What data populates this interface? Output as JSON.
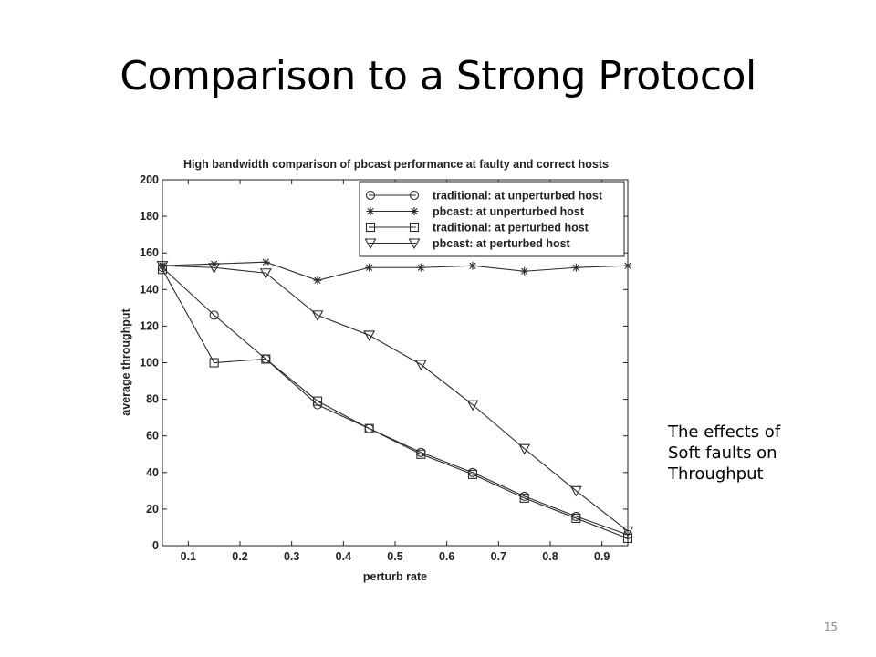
{
  "slide": {
    "title": "Comparison to a Strong Protocol",
    "side_note": [
      "The effects of",
      "Soft faults on",
      "Throughput"
    ],
    "slide_number": "15"
  },
  "chart_data": {
    "type": "line",
    "title": "High bandwidth comparison of pbcast performance at faulty and correct hosts",
    "xlabel": "perturb rate",
    "ylabel": "average throughput",
    "xlim": [
      0.05,
      0.95
    ],
    "ylim": [
      0,
      200
    ],
    "xticks": [
      0.1,
      0.2,
      0.3,
      0.4,
      0.5,
      0.6,
      0.7,
      0.8,
      0.9
    ],
    "xtick_labels": [
      "0.1",
      "0.2",
      "0.3",
      "0.4",
      "0.5",
      "0.6",
      "0.7",
      "0.8",
      "0.9"
    ],
    "yticks": [
      0,
      20,
      40,
      60,
      80,
      100,
      120,
      140,
      160,
      180,
      200
    ],
    "ytick_labels": [
      "0",
      "20",
      "40",
      "60",
      "80",
      "100",
      "120",
      "140",
      "160",
      "180",
      "200"
    ],
    "grid": false,
    "legend_position": "top-right",
    "line_color": "#2b2b2b",
    "x": [
      0.05,
      0.15,
      0.25,
      0.35,
      0.45,
      0.55,
      0.65,
      0.75,
      0.85,
      0.95
    ],
    "series": [
      {
        "name": "traditional: at unperturbed host",
        "marker": "circle",
        "values": [
          152,
          126,
          102,
          77,
          64,
          51,
          40,
          27,
          16,
          6
        ]
      },
      {
        "name": "pbcast: at unperturbed host",
        "marker": "star",
        "values": [
          153,
          154,
          155,
          145,
          152,
          152,
          153,
          150,
          152,
          153
        ]
      },
      {
        "name": "traditional: at perturbed host",
        "marker": "square",
        "values": [
          151,
          100,
          102,
          79,
          64,
          50,
          39,
          26,
          15,
          4
        ]
      },
      {
        "name": "pbcast: at perturbed host",
        "marker": "triangle-down",
        "values": [
          153,
          152,
          149,
          126,
          115,
          99,
          77,
          53,
          30,
          8
        ]
      }
    ]
  }
}
